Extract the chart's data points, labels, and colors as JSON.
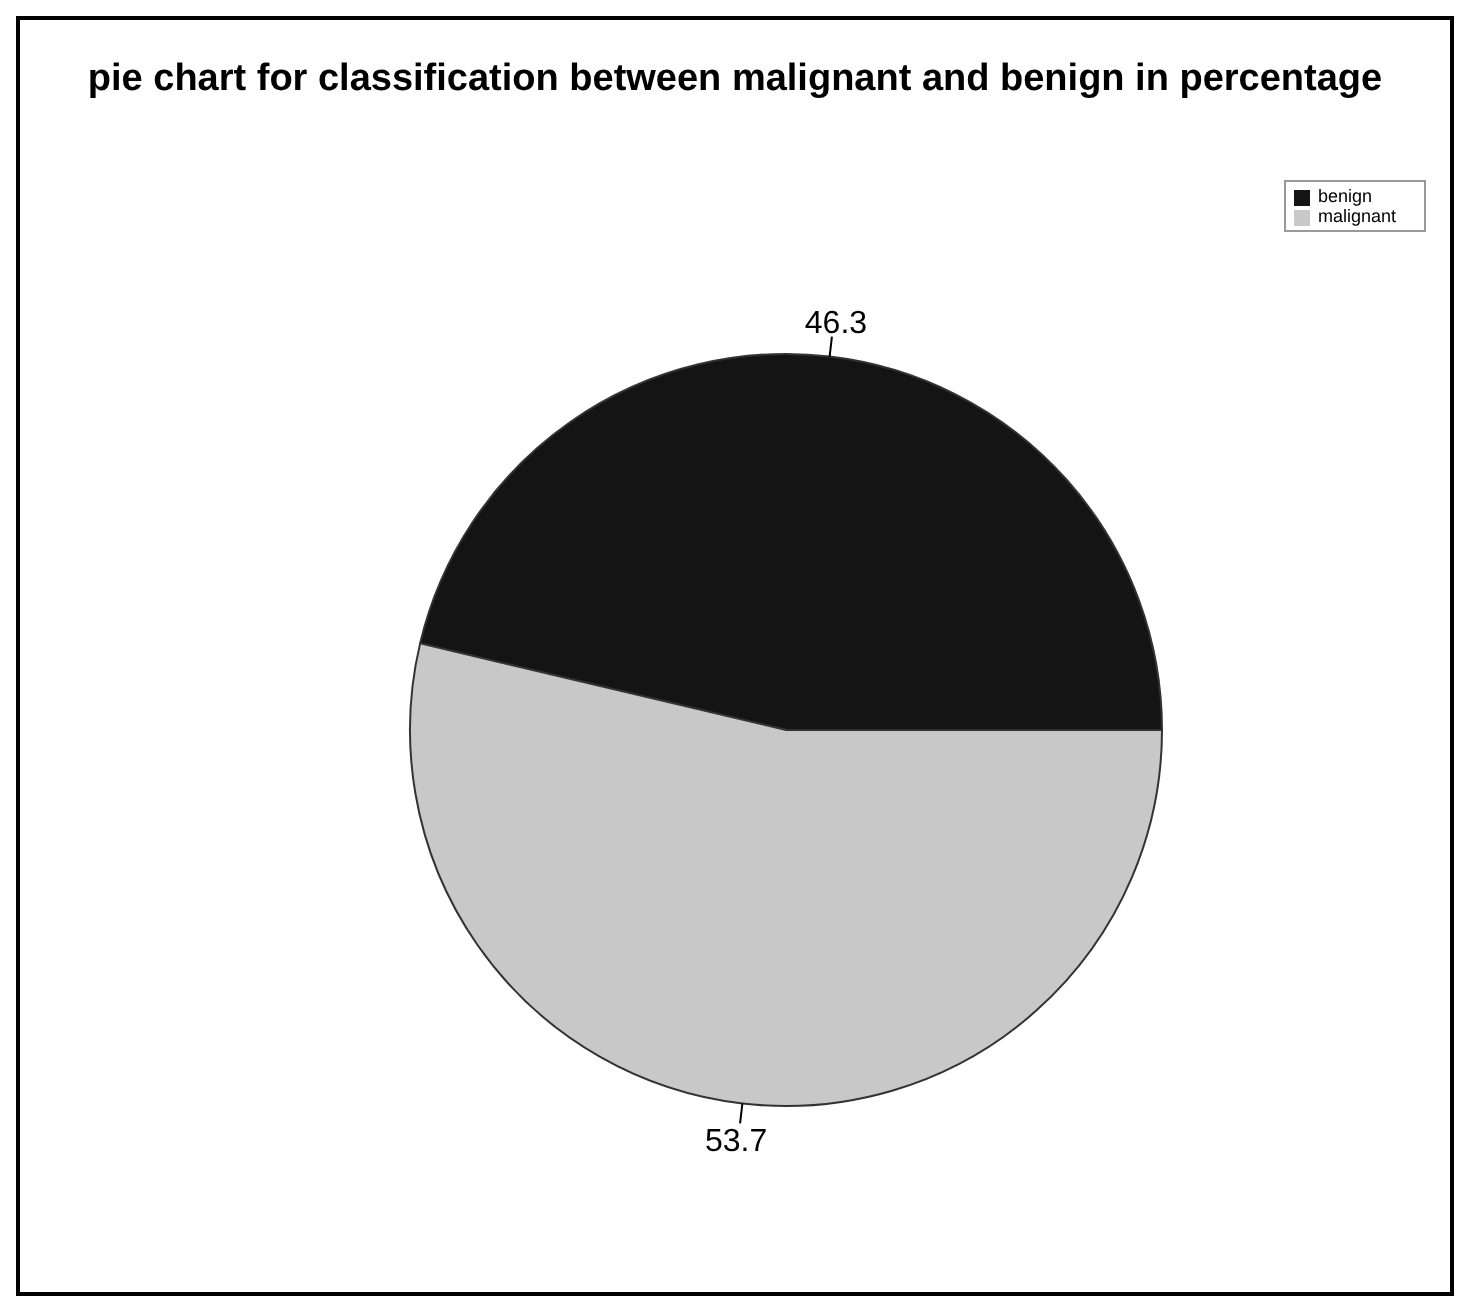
{
  "chart_data": {
    "type": "pie",
    "title": "pie chart for classification between malignant and benign in percentage",
    "categories": [
      "benign",
      "malignant"
    ],
    "values": [
      46.3,
      53.7
    ],
    "colors": [
      "#141414",
      "#c8c8c8"
    ],
    "data_labels": true,
    "legend": "top right"
  }
}
